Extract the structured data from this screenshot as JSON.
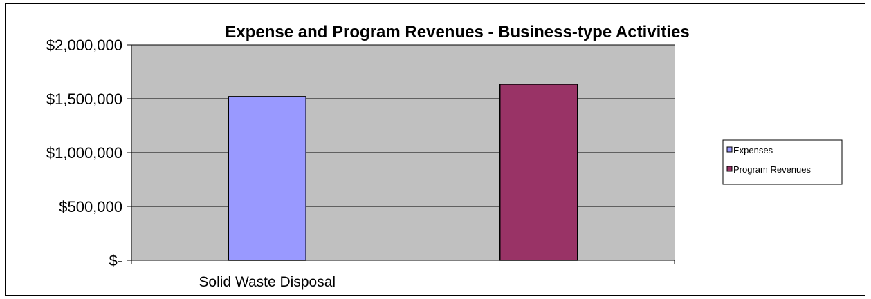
{
  "chart_data": {
    "type": "bar",
    "title": "Expense and Program Revenues - Business-type Activities",
    "xlabel": "",
    "ylabel": "",
    "categories": [
      "Solid Waste Disposal",
      ""
    ],
    "series": [
      {
        "name": "Expenses",
        "values": [
          1520000,
          null
        ],
        "color": "#9999ff"
      },
      {
        "name": "Program Revenues",
        "values": [
          null,
          1635000
        ],
        "color": "#993366"
      }
    ],
    "ylim": [
      0,
      2000000
    ],
    "yticks": [
      0,
      500000,
      1000000,
      1500000,
      2000000
    ],
    "ytick_labels": [
      "$-",
      "$500,000",
      "$1,000,000",
      "$1,500,000",
      "$2,000,000"
    ],
    "grid": true,
    "plot_background": "#c0c0c0",
    "legend_position": "right"
  }
}
